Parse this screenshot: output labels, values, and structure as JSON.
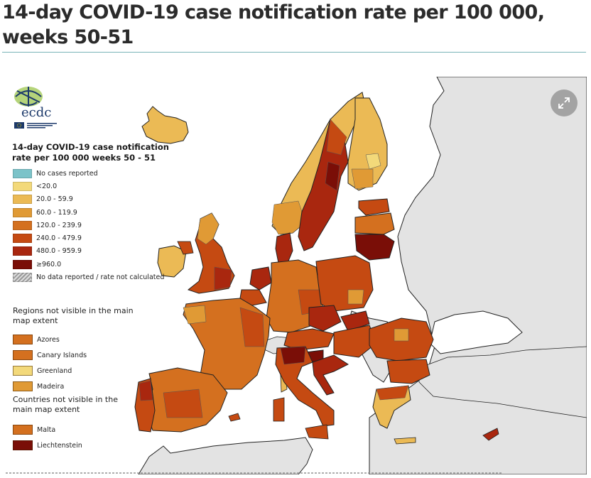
{
  "header": {
    "title": "14-day COVID-19 case notification rate per 100 000, weeks 50-51"
  },
  "map": {
    "logo": {
      "text": "ecdc",
      "subtitle": "EUROPEAN CENTRE FOR DISEASE PREVENTION AND CONTROL"
    },
    "legend": {
      "title": "14-day COVID-19 case notification rate per 100 000 weeks 50 - 51",
      "items": [
        {
          "label": "No cases reported",
          "color": "#7cc3c9"
        },
        {
          "label": "<20.0",
          "color": "#f3d97a"
        },
        {
          "label": "20.0 - 59.9",
          "color": "#ebba55"
        },
        {
          "label": "60.0 - 119.9",
          "color": "#e09a35"
        },
        {
          "label": "120.0 - 239.9",
          "color": "#d4701f"
        },
        {
          "label": "240.0 - 479.9",
          "color": "#c54a12"
        },
        {
          "label": "480.0 - 959.9",
          "color": "#a9270f"
        },
        {
          "label": "≥960.0",
          "color": "#7a0e07"
        },
        {
          "label": "No data reported / rate not calculated",
          "color": "hatch"
        }
      ]
    },
    "regions_not_visible": {
      "heading": "Regions not visible in the main map extent",
      "items": [
        {
          "label": "Azores",
          "color": "#d4701f"
        },
        {
          "label": "Canary Islands",
          "color": "#d4701f"
        },
        {
          "label": "Greenland",
          "color": "#f3d97a"
        },
        {
          "label": "Madeira",
          "color": "#e09a35"
        }
      ]
    },
    "countries_not_visible": {
      "heading": "Countries not visible in the main map extent",
      "items": [
        {
          "label": "Malta",
          "color": "#d4701f"
        },
        {
          "label": "Liechtenstein",
          "color": "#7a0e07"
        }
      ]
    },
    "expand_icon": "expand-arrows-icon",
    "colors": {
      "non_eu": "#e3e3e3",
      "sea": "#ffffff",
      "title_rule": "#7ab3b8"
    }
  }
}
